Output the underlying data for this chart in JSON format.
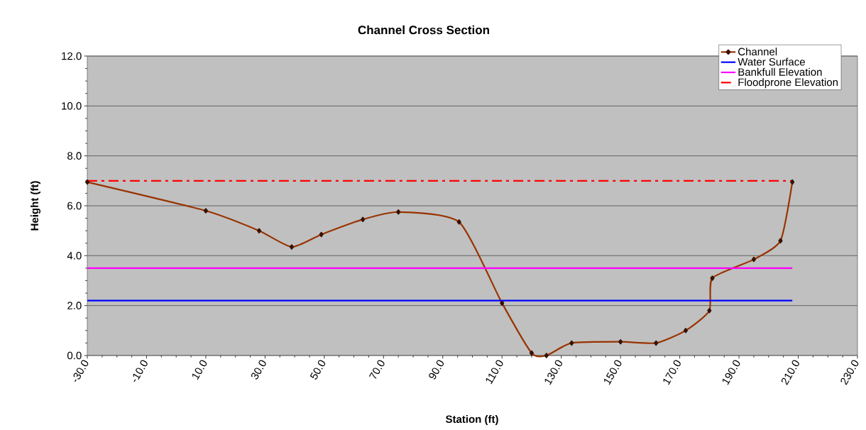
{
  "chart_data": {
    "type": "line",
    "title": "Channel Cross Section",
    "xlabel": "Station (ft)",
    "ylabel": "Height (ft)",
    "xlim": [
      -30,
      230
    ],
    "ylim": [
      0,
      12
    ],
    "xticks": [
      {
        "value": -30,
        "label": "-30.0"
      },
      {
        "value": -10,
        "label": "-10.0"
      },
      {
        "value": 10,
        "label": "10.0"
      },
      {
        "value": 30,
        "label": "30.0"
      },
      {
        "value": 50,
        "label": "50.0"
      },
      {
        "value": 70,
        "label": "70.0"
      },
      {
        "value": 90,
        "label": "90.0"
      },
      {
        "value": 110,
        "label": "110.0"
      },
      {
        "value": 130,
        "label": "130.0"
      },
      {
        "value": 150,
        "label": "150.0"
      },
      {
        "value": 170,
        "label": "170.0"
      },
      {
        "value": 190,
        "label": "190.0"
      },
      {
        "value": 210,
        "label": "210.0"
      },
      {
        "value": 230,
        "label": "230.0"
      }
    ],
    "yticks": [
      {
        "value": 0,
        "label": "0.0"
      },
      {
        "value": 2,
        "label": "2.0"
      },
      {
        "value": 4,
        "label": "4.0"
      },
      {
        "value": 6,
        "label": "6.0"
      },
      {
        "value": 8,
        "label": "8.0"
      },
      {
        "value": 10,
        "label": "10.0"
      },
      {
        "value": 12,
        "label": "12.0"
      }
    ],
    "grid": "y",
    "legend": "top right",
    "series": [
      {
        "name": "Channel",
        "color": "#993300",
        "marker": "diamond",
        "x": [
          -30,
          10,
          28,
          39,
          49,
          63,
          75,
          95.5,
          110,
          120,
          125,
          133.5,
          150,
          162,
          172,
          180,
          181,
          195,
          204,
          208
        ],
        "values": [
          6.95,
          5.8,
          5.0,
          4.35,
          4.85,
          5.45,
          5.75,
          5.35,
          2.1,
          0.1,
          0,
          0.5,
          0.55,
          0.5,
          1.0,
          1.8,
          3.1,
          3.85,
          4.6,
          6.95
        ]
      },
      {
        "name": "Water Surface",
        "color": "#0000ff",
        "x": [
          -30,
          208
        ],
        "values": [
          2.2,
          2.2
        ]
      },
      {
        "name": "Bankfull Elevation",
        "color": "#ff00ff",
        "x": [
          -30,
          208
        ],
        "values": [
          3.5,
          3.5
        ]
      },
      {
        "name": "Floodprone Elevation",
        "color": "#ff0000",
        "line_style": "dashed",
        "x": [
          -30,
          208
        ],
        "values": [
          7.0,
          7.0
        ]
      }
    ]
  }
}
